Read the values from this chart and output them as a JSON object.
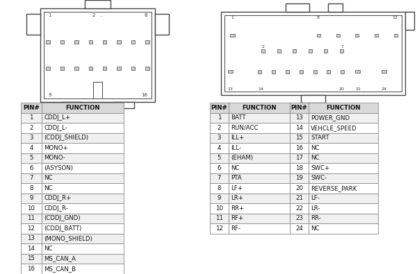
{
  "bg_color": "#ffffff",
  "table1": {
    "headers": [
      "PIN#",
      "FUNCTION"
    ],
    "rows": [
      [
        "1",
        "CDDJ_L+"
      ],
      [
        "2",
        "CDDJ_L-"
      ],
      [
        "3",
        "(CDDJ_SHIELD)"
      ],
      [
        "4",
        "MONO+"
      ],
      [
        "5",
        "MONO-"
      ],
      [
        "6",
        "(ASYSON)"
      ],
      [
        "7",
        "NC"
      ],
      [
        "8",
        "NC"
      ],
      [
        "9",
        "CDDJ_R+"
      ],
      [
        "10",
        "CDDJ_R-"
      ],
      [
        "11",
        "(CDDJ_GND)"
      ],
      [
        "12",
        "(CDDJ_BATT)"
      ],
      [
        "13",
        "(MONO_SHIELD)"
      ],
      [
        "14",
        "NC"
      ],
      [
        "15",
        "MS_CAN_A"
      ],
      [
        "16",
        "MS_CAN_B"
      ]
    ]
  },
  "table2": {
    "headers": [
      "PIN#",
      "FUNCTION",
      "PIN#",
      "FUNCTION"
    ],
    "rows": [
      [
        "1",
        "BATT",
        "13",
        "POWER_GND"
      ],
      [
        "2",
        "RUN/ACC",
        "14",
        "VEHCLE_SPEED"
      ],
      [
        "3",
        "ILL+",
        "15",
        "START"
      ],
      [
        "4",
        "ILL-",
        "16",
        "NC"
      ],
      [
        "5",
        "(EHAM)",
        "17",
        "NC"
      ],
      [
        "6",
        "NC",
        "18",
        "SWC+"
      ],
      [
        "7",
        "PTA",
        "19",
        "SWC-"
      ],
      [
        "8",
        "LF+",
        "20",
        "REVERSE_PARK"
      ],
      [
        "9",
        "LR+",
        "21",
        "LF-"
      ],
      [
        "10",
        "RR+",
        "22",
        "LR-"
      ],
      [
        "11",
        "RF+",
        "23",
        "RR-"
      ],
      [
        "12",
        "RF-",
        "24",
        "NC"
      ]
    ]
  }
}
